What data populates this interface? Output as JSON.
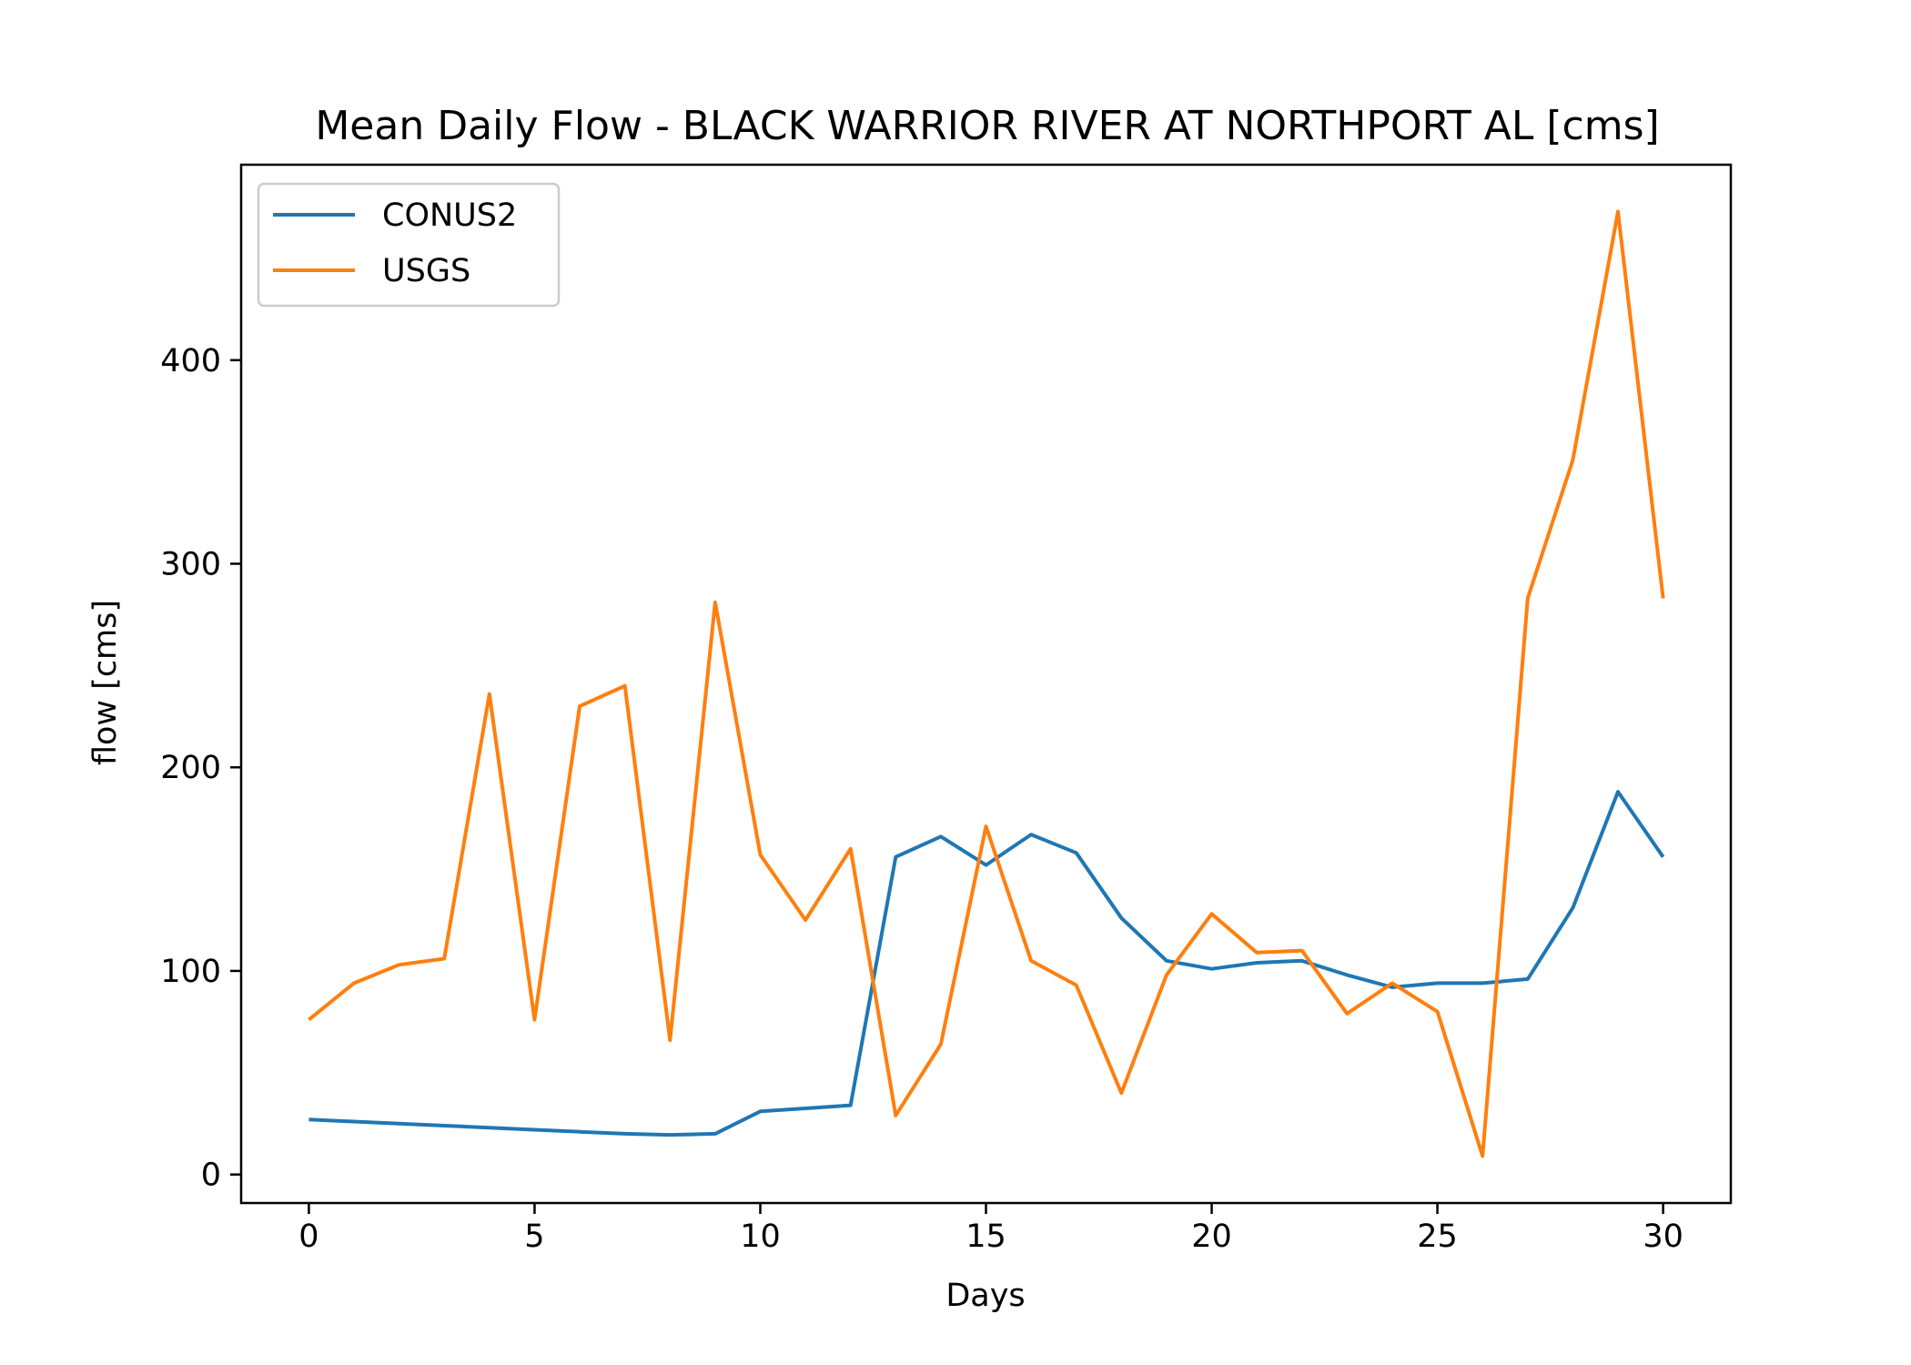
{
  "chart_data": {
    "type": "line",
    "title": "Mean Daily Flow - BLACK WARRIOR RIVER AT NORTHPORT AL [cms]",
    "xlabel": "Days",
    "ylabel": "flow [cms]",
    "xlim": [
      -1.5,
      31.5
    ],
    "ylim": [
      -14,
      496
    ],
    "xticks": [
      0,
      5,
      10,
      15,
      20,
      25,
      30
    ],
    "yticks": [
      0,
      100,
      200,
      300,
      400
    ],
    "grid": false,
    "legend_position": "top-left",
    "x": [
      0,
      1,
      2,
      3,
      4,
      5,
      6,
      7,
      8,
      9,
      10,
      11,
      12,
      13,
      14,
      15,
      16,
      17,
      18,
      19,
      20,
      21,
      22,
      23,
      24,
      25,
      26,
      27,
      28,
      29,
      30
    ],
    "series": [
      {
        "name": "CONUS2",
        "color": "#1f77b4",
        "values": [
          27,
          26,
          25,
          24,
          23,
          22,
          21,
          20,
          19.5,
          20,
          31,
          32.5,
          34,
          156,
          166,
          152,
          167,
          158,
          126,
          105,
          101,
          104,
          105,
          98,
          92,
          94,
          94,
          96,
          131,
          188,
          156
        ]
      },
      {
        "name": "USGS",
        "color": "#ff7f0e",
        "values": [
          76,
          94,
          103,
          106,
          236,
          76,
          230,
          240,
          66,
          281,
          157,
          125,
          160,
          29,
          64,
          171,
          105,
          93,
          40,
          98,
          128,
          109,
          110,
          79,
          94,
          80,
          9,
          283,
          351,
          473,
          283
        ]
      }
    ]
  }
}
